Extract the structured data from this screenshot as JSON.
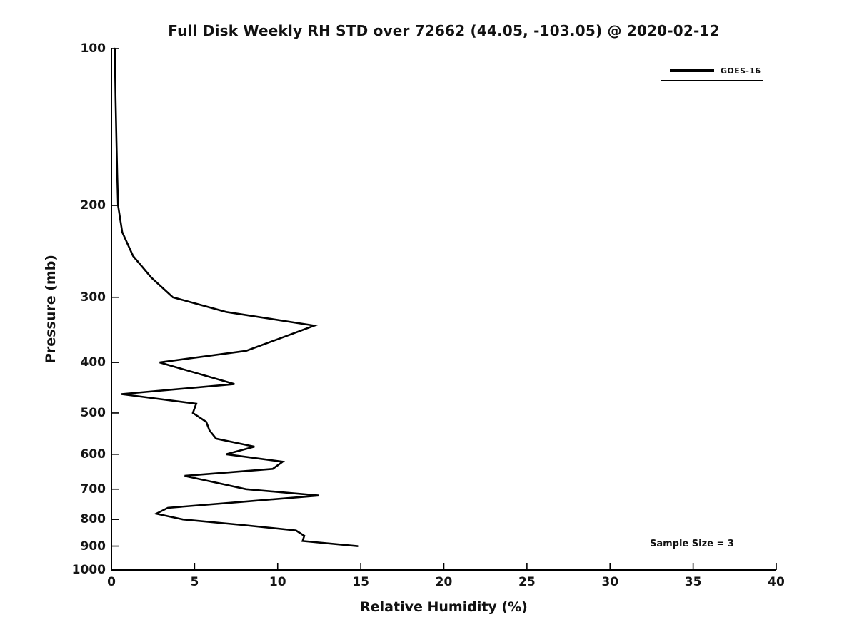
{
  "chart_data": {
    "type": "line",
    "title": "Full Disk Weekly RH STD over 72662 (44.05, -103.05) @ 2020-02-12",
    "xlabel": "Relative Humidity (%)",
    "ylabel": "Pressure (mb)",
    "xlim": [
      0,
      40
    ],
    "ylim": [
      100,
      1000
    ],
    "yscale": "log",
    "y_inverted": true,
    "grid": false,
    "x_ticks": [
      0,
      5,
      10,
      15,
      20,
      25,
      30,
      35,
      40
    ],
    "y_ticks": [
      100,
      200,
      300,
      400,
      500,
      600,
      700,
      800,
      900,
      1000
    ],
    "legend_position": "upper right",
    "annotations": [
      "Sample Size = 3"
    ],
    "line_color": "#000000",
    "series": [
      {
        "name": "GOES-16",
        "color": "#000000",
        "points_rh_pressure": [
          [
            0.2,
            100
          ],
          [
            0.25,
            125
          ],
          [
            0.3,
            150
          ],
          [
            0.35,
            175
          ],
          [
            0.4,
            200
          ],
          [
            0.65,
            225
          ],
          [
            1.3,
            250
          ],
          [
            2.4,
            275
          ],
          [
            3.7,
            300
          ],
          [
            6.9,
            320
          ],
          [
            12.2,
            340
          ],
          [
            10.1,
            360
          ],
          [
            8.1,
            380
          ],
          [
            2.9,
            400
          ],
          [
            5.2,
            420
          ],
          [
            7.4,
            440
          ],
          [
            0.6,
            460
          ],
          [
            5.1,
            480
          ],
          [
            4.9,
            500
          ],
          [
            5.7,
            520
          ],
          [
            5.9,
            540
          ],
          [
            6.3,
            560
          ],
          [
            8.6,
            580
          ],
          [
            6.9,
            600
          ],
          [
            10.3,
            620
          ],
          [
            9.7,
            640
          ],
          [
            4.4,
            660
          ],
          [
            6.3,
            680
          ],
          [
            8.1,
            700
          ],
          [
            12.5,
            720
          ],
          [
            7.9,
            740
          ],
          [
            3.4,
            760
          ],
          [
            2.7,
            780
          ],
          [
            4.3,
            800
          ],
          [
            7.9,
            820
          ],
          [
            11.1,
            840
          ],
          [
            11.6,
            860
          ],
          [
            11.5,
            880
          ],
          [
            14.8,
            900
          ]
        ]
      }
    ]
  }
}
